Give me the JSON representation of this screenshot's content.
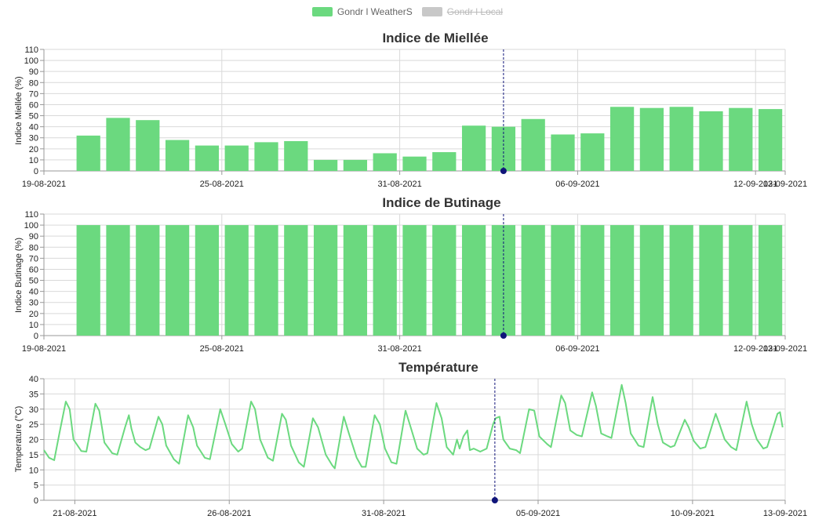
{
  "legend": [
    {
      "label": "Gondr l WeatherS",
      "color": "#6bd97f",
      "hidden": false
    },
    {
      "label": "Gondr l Local",
      "color": "#c8c8c8",
      "hidden": true
    }
  ],
  "colors": {
    "bar": "#6bd97f",
    "line": "#6bd97f",
    "grid": "#d9d9d9",
    "marker": "#10157a",
    "cursor": "#10157a"
  },
  "cursor_date": "03-09-2021",
  "chart_data": [
    {
      "type": "bar",
      "title": "Indice de Miellée",
      "ylabel": "Indice Miellée (%)",
      "ylim": [
        0,
        110
      ],
      "yticks": [
        0,
        10,
        20,
        30,
        40,
        50,
        60,
        70,
        80,
        90,
        100,
        110
      ],
      "xlim": [
        "19-08-2021",
        "13-09-2021"
      ],
      "xticks": [
        "19-08-2021",
        "25-08-2021",
        "31-08-2021",
        "06-09-2021",
        "12-09-2021",
        "13-09-2021"
      ],
      "categories": [
        "20-08-2021",
        "21-08-2021",
        "22-08-2021",
        "23-08-2021",
        "24-08-2021",
        "25-08-2021",
        "26-08-2021",
        "27-08-2021",
        "28-08-2021",
        "29-08-2021",
        "30-08-2021",
        "31-08-2021",
        "01-09-2021",
        "02-09-2021",
        "03-09-2021",
        "04-09-2021",
        "05-09-2021",
        "06-09-2021",
        "07-09-2021",
        "08-09-2021",
        "09-09-2021",
        "10-09-2021",
        "11-09-2021",
        "12-09-2021"
      ],
      "series": [
        {
          "values": [
            32,
            48,
            46,
            28,
            23,
            23,
            26,
            27,
            10,
            10,
            16,
            13,
            17,
            41,
            40,
            47,
            33,
            34,
            58,
            57,
            58,
            54,
            57,
            56
          ]
        }
      ]
    },
    {
      "type": "bar",
      "title": "Indice de Butinage",
      "ylabel": "Indice Butinage (%)",
      "ylim": [
        0,
        110
      ],
      "yticks": [
        0,
        10,
        20,
        30,
        40,
        50,
        60,
        70,
        80,
        90,
        100,
        110
      ],
      "xlim": [
        "19-08-2021",
        "13-09-2021"
      ],
      "xticks": [
        "19-08-2021",
        "25-08-2021",
        "31-08-2021",
        "06-09-2021",
        "12-09-2021",
        "13-09-2021"
      ],
      "categories": [
        "20-08-2021",
        "21-08-2021",
        "22-08-2021",
        "23-08-2021",
        "24-08-2021",
        "25-08-2021",
        "26-08-2021",
        "27-08-2021",
        "28-08-2021",
        "29-08-2021",
        "30-08-2021",
        "31-08-2021",
        "01-09-2021",
        "02-09-2021",
        "03-09-2021",
        "04-09-2021",
        "05-09-2021",
        "06-09-2021",
        "07-09-2021",
        "08-09-2021",
        "09-09-2021",
        "10-09-2021",
        "11-09-2021",
        "12-09-2021"
      ],
      "series": [
        {
          "values": [
            100,
            100,
            100,
            100,
            100,
            100,
            100,
            100,
            100,
            100,
            100,
            100,
            100,
            100,
            100,
            100,
            100,
            100,
            100,
            100,
            100,
            100,
            100,
            100
          ]
        }
      ]
    },
    {
      "type": "line",
      "title": "Température",
      "ylabel": "Temperature (°C)",
      "ylim": [
        0,
        40
      ],
      "yticks": [
        0,
        5,
        10,
        15,
        20,
        25,
        30,
        35,
        40
      ],
      "xlim": [
        "20-08-2021",
        "13-09-2021"
      ],
      "xticks": [
        "21-08-2021",
        "26-08-2021",
        "31-08-2021",
        "05-09-2021",
        "10-09-2021",
        "13-09-2021"
      ],
      "series": [
        {
          "points": [
            [
              "20-08-2021 00:00",
              16.5
            ],
            [
              "20-08-2021 04:00",
              14.0
            ],
            [
              "20-08-2021 08:00",
              13.2
            ],
            [
              "20-08-2021 12:00",
              22.0
            ],
            [
              "20-08-2021 17:00",
              32.5
            ],
            [
              "20-08-2021 20:00",
              30.0
            ],
            [
              "20-08-2021 23:00",
              20.0
            ],
            [
              "21-08-2021 05:00",
              16.2
            ],
            [
              "21-08-2021 09:00",
              16.0
            ],
            [
              "21-08-2021 16:00",
              31.8
            ],
            [
              "21-08-2021 19:00",
              29.5
            ],
            [
              "21-08-2021 23:00",
              19.0
            ],
            [
              "22-08-2021 05:00",
              15.5
            ],
            [
              "22-08-2021 09:00",
              15.0
            ],
            [
              "22-08-2021 15:00",
              24.0
            ],
            [
              "22-08-2021 18:00",
              28.0
            ],
            [
              "22-08-2021 20:00",
              23.5
            ],
            [
              "22-08-2021 23:00",
              19.0
            ],
            [
              "23-08-2021 03:00",
              17.5
            ],
            [
              "23-08-2021 07:00",
              16.5
            ],
            [
              "23-08-2021 10:00",
              17.0
            ],
            [
              "23-08-2021 17:00",
              27.5
            ],
            [
              "23-08-2021 20:00",
              25.0
            ],
            [
              "23-08-2021 23:00",
              18.0
            ],
            [
              "24-08-2021 05:00",
              13.5
            ],
            [
              "24-08-2021 09:00",
              12.0
            ],
            [
              "24-08-2021 16:00",
              28.0
            ],
            [
              "24-08-2021 20:00",
              24.0
            ],
            [
              "24-08-2021 23:00",
              18.0
            ],
            [
              "25-08-2021 05:00",
              14.0
            ],
            [
              "25-08-2021 09:00",
              13.5
            ],
            [
              "25-08-2021 17:00",
              30.0
            ],
            [
              "25-08-2021 21:00",
              25.0
            ],
            [
              "26-08-2021 02:00",
              18.5
            ],
            [
              "26-08-2021 07:00",
              16.0
            ],
            [
              "26-08-2021 10:00",
              17.0
            ],
            [
              "26-08-2021 17:00",
              32.5
            ],
            [
              "26-08-2021 20:00",
              30.0
            ],
            [
              "27-08-2021 00:00",
              20.0
            ],
            [
              "27-08-2021 06:00",
              14.0
            ],
            [
              "27-08-2021 10:00",
              13.0
            ],
            [
              "27-08-2021 17:00",
              28.5
            ],
            [
              "27-08-2021 20:00",
              26.5
            ],
            [
              "28-08-2021 00:00",
              18.0
            ],
            [
              "28-08-2021 06:00",
              12.5
            ],
            [
              "28-08-2021 10:00",
              11.0
            ],
            [
              "28-08-2021 17:00",
              27.0
            ],
            [
              "28-08-2021 21:00",
              24.0
            ],
            [
              "29-08-2021 03:00",
              15.0
            ],
            [
              "29-08-2021 08:00",
              11.5
            ],
            [
              "29-08-2021 10:00",
              10.5
            ],
            [
              "29-08-2021 17:00",
              27.5
            ],
            [
              "29-08-2021 21:00",
              22.0
            ],
            [
              "30-08-2021 03:00",
              14.0
            ],
            [
              "30-08-2021 07:00",
              11.0
            ],
            [
              "30-08-2021 10:00",
              11.0
            ],
            [
              "30-08-2021 17:00",
              28.0
            ],
            [
              "30-08-2021 21:00",
              25.0
            ],
            [
              "31-08-2021 01:00",
              17.0
            ],
            [
              "31-08-2021 06:00",
              12.5
            ],
            [
              "31-08-2021 10:00",
              12.0
            ],
            [
              "31-08-2021 17:00",
              29.5
            ],
            [
              "31-08-2021 21:00",
              24.0
            ],
            [
              "01-09-2021 02:00",
              17.0
            ],
            [
              "01-09-2021 07:00",
              15.0
            ],
            [
              "01-09-2021 10:00",
              15.5
            ],
            [
              "01-09-2021 17:00",
              32.0
            ],
            [
              "01-09-2021 21:00",
              27.0
            ],
            [
              "02-09-2021 01:00",
              17.5
            ],
            [
              "02-09-2021 06:00",
              15.0
            ],
            [
              "02-09-2021 09:00",
              20.0
            ],
            [
              "02-09-2021 11:00",
              17.0
            ],
            [
              "02-09-2021 14:00",
              21.0
            ],
            [
              "02-09-2021 17:00",
              23.0
            ],
            [
              "02-09-2021 19:00",
              16.5
            ],
            [
              "02-09-2021 22:00",
              17.0
            ],
            [
              "03-09-2021 03:00",
              16.0
            ],
            [
              "03-09-2021 08:00",
              17.0
            ],
            [
              "03-09-2021 13:00",
              25.0
            ],
            [
              "03-09-2021 15:00",
              27.0
            ],
            [
              "03-09-2021 18:00",
              27.5
            ],
            [
              "03-09-2021 21:00",
              20.0
            ],
            [
              "04-09-2021 02:00",
              17.0
            ],
            [
              "04-09-2021 07:00",
              16.5
            ],
            [
              "04-09-2021 10:00",
              15.5
            ],
            [
              "04-09-2021 17:00",
              30.0
            ],
            [
              "04-09-2021 21:00",
              29.5
            ],
            [
              "05-09-2021 01:00",
              21.0
            ],
            [
              "05-09-2021 07:00",
              18.5
            ],
            [
              "05-09-2021 10:00",
              17.5
            ],
            [
              "05-09-2021 18:00",
              34.5
            ],
            [
              "05-09-2021 21:00",
              32.0
            ],
            [
              "06-09-2021 01:00",
              23.0
            ],
            [
              "06-09-2021 06:00",
              21.5
            ],
            [
              "06-09-2021 10:00",
              21.0
            ],
            [
              "06-09-2021 18:00",
              35.5
            ],
            [
              "06-09-2021 21:00",
              31.0
            ],
            [
              "07-09-2021 01:00",
              22.0
            ],
            [
              "07-09-2021 06:00",
              21.0
            ],
            [
              "07-09-2021 09:00",
              20.5
            ],
            [
              "07-09-2021 17:00",
              38.0
            ],
            [
              "07-09-2021 20:00",
              32.0
            ],
            [
              "08-09-2021 00:00",
              22.0
            ],
            [
              "08-09-2021 06:00",
              18.0
            ],
            [
              "08-09-2021 10:00",
              17.5
            ],
            [
              "08-09-2021 17:00",
              34.0
            ],
            [
              "08-09-2021 21:00",
              25.0
            ],
            [
              "09-09-2021 01:00",
              19.0
            ],
            [
              "09-09-2021 07:00",
              17.5
            ],
            [
              "09-09-2021 10:00",
              18.0
            ],
            [
              "09-09-2021 18:00",
              26.5
            ],
            [
              "09-09-2021 21:00",
              24.0
            ],
            [
              "10-09-2021 01:00",
              19.5
            ],
            [
              "10-09-2021 06:00",
              17.0
            ],
            [
              "10-09-2021 10:00",
              17.5
            ],
            [
              "10-09-2021 18:00",
              28.5
            ],
            [
              "10-09-2021 21:00",
              25.0
            ],
            [
              "11-09-2021 01:00",
              20.0
            ],
            [
              "11-09-2021 06:00",
              17.5
            ],
            [
              "11-09-2021 10:00",
              16.5
            ],
            [
              "11-09-2021 18:00",
              32.5
            ],
            [
              "11-09-2021 22:00",
              25.0
            ],
            [
              "12-09-2021 02:00",
              20.0
            ],
            [
              "12-09-2021 07:00",
              17.0
            ],
            [
              "12-09-2021 10:00",
              17.5
            ],
            [
              "12-09-2021 18:00",
              28.5
            ],
            [
              "12-09-2021 20:00",
              29.0
            ],
            [
              "12-09-2021 22:00",
              24.0
            ]
          ]
        }
      ]
    }
  ]
}
